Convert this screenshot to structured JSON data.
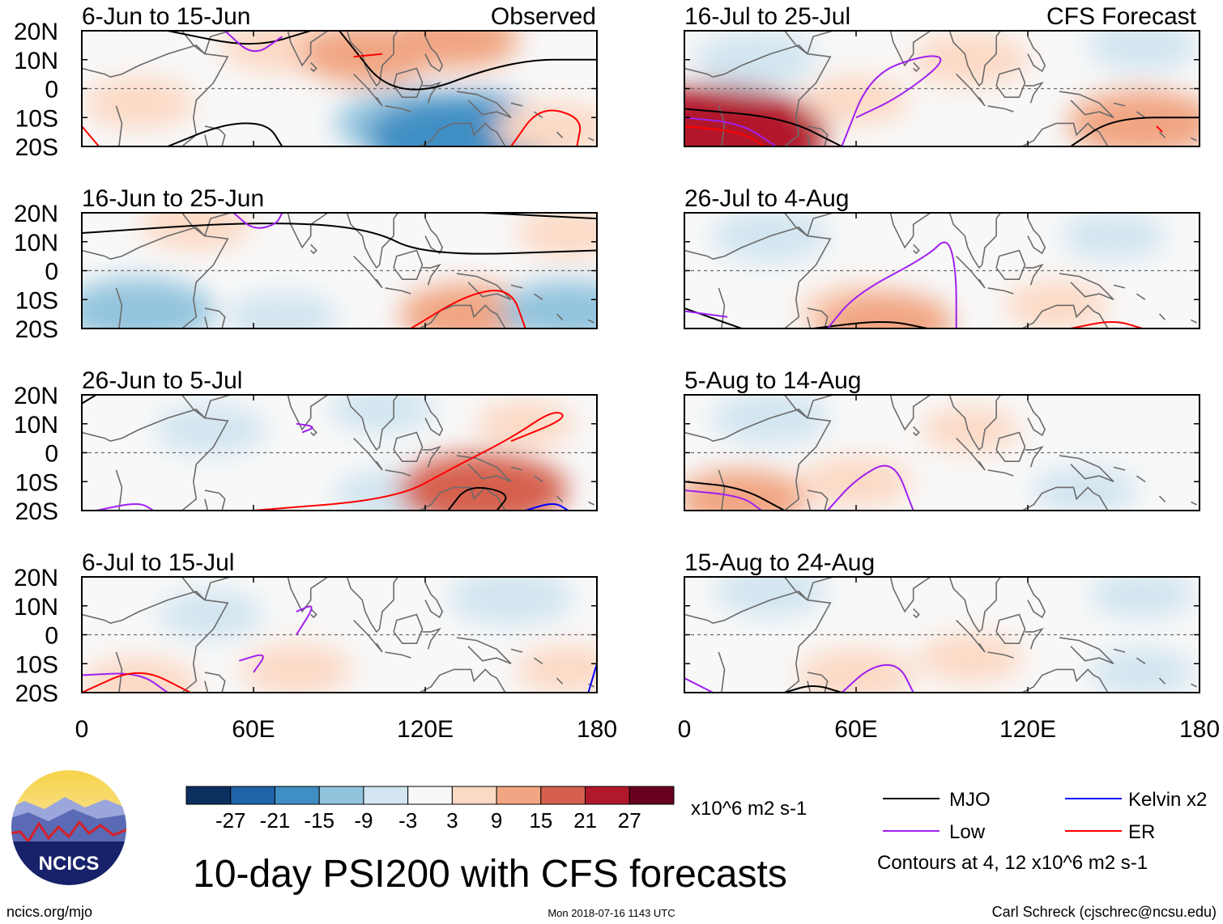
{
  "figure": {
    "title": "10-day PSI200 with CFS forecasts",
    "source_url": "ncics.org/mjo",
    "timestamp": "Mon 2018-07-16 1143 UTC",
    "author": "Carl Schreck (cjschrec@ncsu.edu)",
    "logo_text": "NCICS"
  },
  "columns": {
    "observed_label": "Observed",
    "forecast_label": "CFS Forecast"
  },
  "axes": {
    "lat_ticks": [
      "20N",
      "10N",
      "0",
      "10S",
      "20S"
    ],
    "lon_ticks": [
      "0",
      "60E",
      "120E",
      "180"
    ],
    "lat_range": [
      -20,
      20
    ],
    "lon_range": [
      0,
      180
    ]
  },
  "colorbar": {
    "colors": [
      "#0b2f5e",
      "#1f63a8",
      "#3f8fc4",
      "#93c4de",
      "#d2e5f0",
      "#f8f8f8",
      "#fcd9c4",
      "#f1a582",
      "#d5604d",
      "#b2182b",
      "#67001f"
    ],
    "labels": [
      "-27",
      "-21",
      "-15",
      "-9",
      "-3",
      "3",
      "9",
      "15",
      "21",
      "27"
    ],
    "units": "x10^6 m2 s-1"
  },
  "legend": {
    "items": [
      {
        "label": "MJO",
        "color": "#000000"
      },
      {
        "label": "Kelvin x2",
        "color": "#0000ff"
      },
      {
        "label": "Low",
        "color": "#a020f0"
      },
      {
        "label": "ER",
        "color": "#ff0000"
      }
    ],
    "contours_note": "Contours at 4, 12 x10^6 m2 s-1"
  },
  "chart_data": [
    {
      "type": "heatmap",
      "title": "6-Jun to 15-Jun",
      "panel_label": "Observed",
      "field": "PSI200 anomaly",
      "units": "x10^6 m2 s-1",
      "xlim": [
        0,
        180
      ],
      "ylim": [
        -20,
        20
      ],
      "anomalies": [
        {
          "lon": 20,
          "lat": -5,
          "value": 6
        },
        {
          "lon": 70,
          "lat": 15,
          "value": 8
        },
        {
          "lon": 100,
          "lat": 12,
          "value": 10
        },
        {
          "lon": 130,
          "lat": 17,
          "value": 9
        },
        {
          "lon": 115,
          "lat": -12,
          "value": -12
        },
        {
          "lon": 135,
          "lat": -17,
          "value": -20
        },
        {
          "lon": 165,
          "lat": -14,
          "value": 7
        }
      ],
      "contours": [
        {
          "wave": "MJO",
          "points": [
            [
              30,
              20
            ],
            [
              60,
              14
            ],
            [
              80,
              20
            ]
          ]
        },
        {
          "wave": "MJO",
          "points": [
            [
              90,
              20
            ],
            [
              110,
              -5
            ],
            [
              150,
              10
            ],
            [
              180,
              10
            ]
          ]
        },
        {
          "wave": "MJO",
          "points": [
            [
              30,
              -20
            ],
            [
              50,
              -12
            ],
            [
              65,
              -12
            ],
            [
              70,
              -20
            ]
          ]
        },
        {
          "wave": "Low",
          "points": [
            [
              50,
              20
            ],
            [
              60,
              11
            ],
            [
              70,
              18
            ]
          ]
        },
        {
          "wave": "ER",
          "points": [
            [
              0,
              -13
            ],
            [
              6,
              -20
            ]
          ]
        },
        {
          "wave": "ER",
          "points": [
            [
              150,
              -20
            ],
            [
              160,
              -6
            ],
            [
              175,
              -10
            ],
            [
              173,
              -20
            ]
          ]
        },
        {
          "wave": "ER",
          "points": [
            [
              95,
              11
            ],
            [
              105,
              12
            ]
          ]
        }
      ]
    },
    {
      "type": "heatmap",
      "title": "16-Jun to 25-Jun",
      "field": "PSI200 anomaly",
      "units": "x10^6 m2 s-1",
      "xlim": [
        0,
        180
      ],
      "ylim": [
        -20,
        20
      ],
      "anomalies": [
        {
          "lon": 40,
          "lat": 16,
          "value": 6
        },
        {
          "lon": 170,
          "lat": 13,
          "value": 5
        },
        {
          "lon": 20,
          "lat": -14,
          "value": -12
        },
        {
          "lon": 70,
          "lat": -16,
          "value": -6
        },
        {
          "lon": 135,
          "lat": -15,
          "value": 10
        },
        {
          "lon": 170,
          "lat": -14,
          "value": -10
        }
      ],
      "contours": [
        {
          "wave": "MJO",
          "points": [
            [
              0,
              13
            ],
            [
              60,
              17
            ],
            [
              100,
              15
            ],
            [
              120,
              5
            ],
            [
              180,
              7
            ]
          ]
        },
        {
          "wave": "MJO",
          "points": [
            [
              140,
              20
            ],
            [
              180,
              18
            ]
          ]
        },
        {
          "wave": "Low",
          "points": [
            [
              53,
              20
            ],
            [
              60,
              14
            ],
            [
              68,
              16
            ],
            [
              70,
              20
            ]
          ]
        },
        {
          "wave": "ER",
          "points": [
            [
              115,
              -20
            ],
            [
              135,
              -8
            ],
            [
              150,
              -6
            ],
            [
              155,
              -20
            ]
          ]
        }
      ]
    },
    {
      "type": "heatmap",
      "title": "26-Jun to 5-Jul",
      "field": "PSI200 anomaly",
      "units": "x10^6 m2 s-1",
      "xlim": [
        0,
        180
      ],
      "ylim": [
        -20,
        20
      ],
      "anomalies": [
        {
          "lon": 45,
          "lat": 8,
          "value": -6
        },
        {
          "lon": 105,
          "lat": 15,
          "value": -5
        },
        {
          "lon": 110,
          "lat": -15,
          "value": -8
        },
        {
          "lon": 140,
          "lat": -13,
          "value": 15
        },
        {
          "lon": 155,
          "lat": 10,
          "value": 4
        }
      ],
      "contours": [
        {
          "wave": "MJO",
          "points": [
            [
              0,
              17
            ],
            [
              5,
              20
            ]
          ]
        },
        {
          "wave": "MJO",
          "points": [
            [
              128,
              -20
            ],
            [
              135,
              -11
            ],
            [
              150,
              -14
            ],
            [
              145,
              -20
            ]
          ]
        },
        {
          "wave": "Low",
          "points": [
            [
              75,
              10
            ],
            [
              82,
              9
            ],
            [
              77,
              7
            ]
          ]
        },
        {
          "wave": "Low",
          "points": [
            [
              5,
              -20
            ],
            [
              20,
              -17
            ],
            [
              25,
              -20
            ]
          ]
        },
        {
          "wave": "ER",
          "points": [
            [
              60,
              -20
            ],
            [
              110,
              -16
            ],
            [
              130,
              -5
            ],
            [
              150,
              5
            ],
            [
              165,
              15
            ],
            [
              170,
              12
            ],
            [
              150,
              4
            ]
          ]
        },
        {
          "wave": "Kelvin x2",
          "points": [
            [
              155,
              -20
            ],
            [
              165,
              -17
            ],
            [
              170,
              -20
            ]
          ]
        }
      ]
    },
    {
      "type": "heatmap",
      "title": "6-Jul to 15-Jul",
      "field": "PSI200 anomaly",
      "units": "x10^6 m2 s-1",
      "xlim": [
        0,
        180
      ],
      "ylim": [
        -20,
        20
      ],
      "anomalies": [
        {
          "lon": 45,
          "lat": 7,
          "value": -5
        },
        {
          "lon": 150,
          "lat": 13,
          "value": -8
        },
        {
          "lon": 75,
          "lat": -12,
          "value": 6
        },
        {
          "lon": 20,
          "lat": -17,
          "value": 7
        },
        {
          "lon": 170,
          "lat": -12,
          "value": 5
        }
      ],
      "contours": [
        {
          "wave": "Low",
          "points": [
            [
              75,
              8
            ],
            [
              82,
              11
            ],
            [
              75,
              0
            ]
          ]
        },
        {
          "wave": "Low",
          "points": [
            [
              55,
              -9
            ],
            [
              65,
              -6
            ],
            [
              60,
              -13
            ]
          ]
        },
        {
          "wave": "Low",
          "points": [
            [
              0,
              -14
            ],
            [
              20,
              -13
            ],
            [
              30,
              -20
            ]
          ]
        },
        {
          "wave": "ER",
          "points": [
            [
              0,
              -20
            ],
            [
              20,
              -11
            ],
            [
              38,
              -20
            ]
          ]
        },
        {
          "wave": "Kelvin x2",
          "points": [
            [
              177,
              -20
            ],
            [
              180,
              -10
            ]
          ]
        }
      ]
    },
    {
      "type": "heatmap",
      "title": "16-Jul to 25-Jul",
      "panel_label": "CFS Forecast",
      "field": "PSI200 anomaly",
      "units": "x10^6 m2 s-1",
      "xlim": [
        0,
        180
      ],
      "ylim": [
        -20,
        20
      ],
      "anomalies": [
        {
          "lon": 10,
          "lat": -16,
          "value": 24
        },
        {
          "lon": 60,
          "lat": -4,
          "value": 5
        },
        {
          "lon": 100,
          "lat": 10,
          "value": 7
        },
        {
          "lon": 160,
          "lat": -12,
          "value": 12
        },
        {
          "lon": 25,
          "lat": 10,
          "value": -8
        },
        {
          "lon": 160,
          "lat": 15,
          "value": -6
        }
      ],
      "contours": [
        {
          "wave": "MJO",
          "points": [
            [
              0,
              -7
            ],
            [
              35,
              -10
            ],
            [
              55,
              -20
            ]
          ]
        },
        {
          "wave": "MJO",
          "points": [
            [
              135,
              -20
            ],
            [
              150,
              -10
            ],
            [
              180,
              -10
            ]
          ]
        },
        {
          "wave": "Low",
          "points": [
            [
              0,
              -10
            ],
            [
              20,
              -12
            ],
            [
              32,
              -20
            ]
          ]
        },
        {
          "wave": "Low",
          "points": [
            [
              55,
              -20
            ],
            [
              65,
              5
            ],
            [
              85,
              12
            ],
            [
              92,
              10
            ],
            [
              75,
              -3
            ],
            [
              60,
              -10
            ]
          ]
        },
        {
          "wave": "ER",
          "points": [
            [
              0,
              -13
            ],
            [
              20,
              -15
            ],
            [
              28,
              -20
            ]
          ]
        },
        {
          "wave": "ER",
          "points": [
            [
              165,
              -13
            ],
            [
              167,
              -15
            ]
          ]
        }
      ]
    },
    {
      "type": "heatmap",
      "title": "26-Jul to 4-Aug",
      "field": "PSI200 anomaly",
      "units": "x10^6 m2 s-1",
      "xlim": [
        0,
        180
      ],
      "ylim": [
        -20,
        20
      ],
      "anomalies": [
        {
          "lon": 30,
          "lat": 12,
          "value": -7
        },
        {
          "lon": 150,
          "lat": 12,
          "value": -5
        },
        {
          "lon": 60,
          "lat": -14,
          "value": 7
        },
        {
          "lon": 130,
          "lat": -12,
          "value": 5
        },
        {
          "lon": 70,
          "lat": -18,
          "value": 10
        }
      ],
      "contours": [
        {
          "wave": "MJO",
          "points": [
            [
              0,
              -13
            ],
            [
              20,
              -20
            ]
          ]
        },
        {
          "wave": "MJO",
          "points": [
            [
              45,
              -20
            ],
            [
              70,
              -17
            ],
            [
              85,
              -20
            ]
          ]
        },
        {
          "wave": "Low",
          "points": [
            [
              0,
              -14
            ],
            [
              15,
              -16
            ]
          ]
        },
        {
          "wave": "Low",
          "points": [
            [
              50,
              -20
            ],
            [
              60,
              -8
            ],
            [
              85,
              5
            ],
            [
              92,
              12
            ],
            [
              95,
              0
            ],
            [
              95,
              -20
            ]
          ]
        },
        {
          "wave": "ER",
          "points": [
            [
              135,
              -20
            ],
            [
              150,
              -17
            ],
            [
              160,
              -20
            ]
          ]
        }
      ]
    },
    {
      "type": "heatmap",
      "title": "5-Aug to 14-Aug",
      "field": "PSI200 anomaly",
      "units": "x10^6 m2 s-1",
      "xlim": [
        0,
        180
      ],
      "ylim": [
        -20,
        20
      ],
      "anomalies": [
        {
          "lon": 30,
          "lat": 12,
          "value": -7
        },
        {
          "lon": 60,
          "lat": -10,
          "value": 6
        },
        {
          "lon": 20,
          "lat": -16,
          "value": 9
        },
        {
          "lon": 100,
          "lat": 8,
          "value": 4
        },
        {
          "lon": 140,
          "lat": -13,
          "value": -5
        }
      ],
      "contours": [
        {
          "wave": "MJO",
          "points": [
            [
              0,
              -10
            ],
            [
              20,
              -12
            ],
            [
              35,
              -20
            ]
          ]
        },
        {
          "wave": "Low",
          "points": [
            [
              0,
              -13
            ],
            [
              20,
              -15
            ],
            [
              27,
              -20
            ]
          ]
        },
        {
          "wave": "Low",
          "points": [
            [
              50,
              -20
            ],
            [
              60,
              -9
            ],
            [
              73,
              -2
            ],
            [
              80,
              -20
            ]
          ]
        }
      ]
    },
    {
      "type": "heatmap",
      "title": "15-Aug to 24-Aug",
      "field": "PSI200 anomaly",
      "units": "x10^6 m2 s-1",
      "xlim": [
        0,
        180
      ],
      "ylim": [
        -20,
        20
      ],
      "anomalies": [
        {
          "lon": 30,
          "lat": 15,
          "value": -6
        },
        {
          "lon": 160,
          "lat": 14,
          "value": -5
        },
        {
          "lon": 60,
          "lat": -14,
          "value": 7
        },
        {
          "lon": 160,
          "lat": -13,
          "value": -5
        },
        {
          "lon": 100,
          "lat": -8,
          "value": 5
        }
      ],
      "contours": [
        {
          "wave": "MJO",
          "points": [
            [
              35,
              -20
            ],
            [
              45,
              -17
            ],
            [
              55,
              -20
            ]
          ]
        },
        {
          "wave": "Low",
          "points": [
            [
              0,
              -15
            ],
            [
              10,
              -20
            ]
          ]
        },
        {
          "wave": "Low",
          "points": [
            [
              55,
              -20
            ],
            [
              65,
              -11
            ],
            [
              75,
              -10
            ],
            [
              80,
              -20
            ]
          ]
        }
      ]
    }
  ]
}
